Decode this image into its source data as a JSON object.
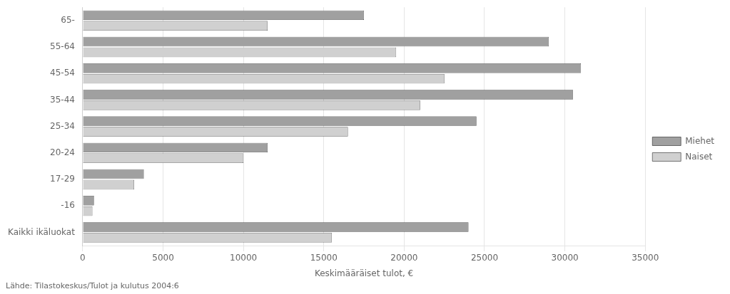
{
  "chart_data": {
    "type": "bar",
    "orientation": "horizontal",
    "categories": [
      "65-",
      "55-64",
      "45-54",
      "35-44",
      "25-34",
      "20-24",
      "17-29",
      "-16",
      "Kaikki ikäluokat"
    ],
    "series": [
      {
        "name": "Miehet",
        "color": "#a0a0a0",
        "values": [
          17500,
          29000,
          31000,
          30500,
          24500,
          11500,
          3800,
          700,
          24000
        ]
      },
      {
        "name": "Naiset",
        "color": "#d0d0d0",
        "values": [
          11500,
          19500,
          22500,
          21000,
          16500,
          10000,
          3200,
          600,
          15500
        ]
      }
    ],
    "xlabel": "Keskimääräiset tulot, €",
    "xlim": [
      0,
      35000
    ],
    "xticks": [
      0,
      5000,
      10000,
      15000,
      20000,
      25000,
      30000,
      35000
    ],
    "grid": true,
    "legend": "right",
    "annotations": [
      "Lähde: Tilastokeskus/Tulot ja kulutus 2004:6"
    ]
  }
}
